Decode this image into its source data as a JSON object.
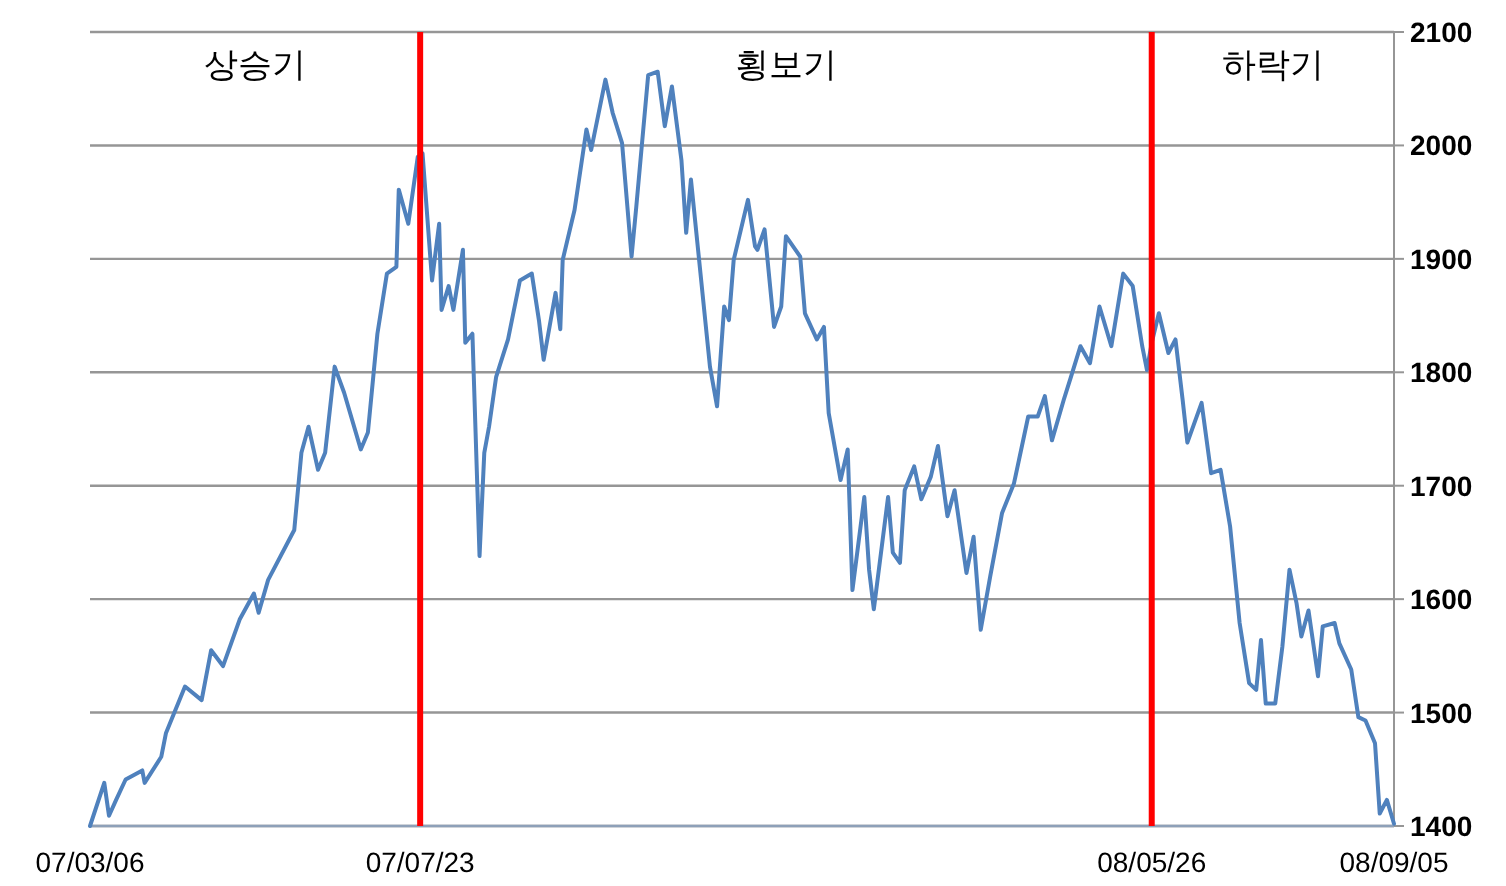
{
  "chart_data": {
    "type": "line",
    "annotations": [
      "상승기",
      "횡보기",
      "하락기"
    ],
    "xlim": [
      "2007-03-06",
      "2008-09-05"
    ],
    "xticks": [
      {
        "value": "2007-03-06",
        "label": "07/03/06"
      },
      {
        "value": "2007-07-23",
        "label": "07/07/23"
      },
      {
        "value": "2008-05-26",
        "label": "08/05/26"
      },
      {
        "value": "2008-09-05",
        "label": "08/09/05"
      }
    ],
    "ylim": [
      1400,
      2100
    ],
    "yticks": [
      1400,
      1500,
      1600,
      1700,
      1800,
      1900,
      2000,
      2100
    ],
    "grid": "y",
    "ref_lines": [
      {
        "axis": "x",
        "value": "2007-07-23",
        "color": "#ff0000"
      },
      {
        "axis": "x",
        "value": "2008-05-26",
        "color": "#ff0000"
      }
    ],
    "series": [
      {
        "color": "#4f81bd",
        "x": [
          "2007-03-06",
          "2007-03-12",
          "2007-03-14",
          "2007-03-17",
          "2007-03-21",
          "2007-03-28",
          "2007-03-29",
          "2007-04-05",
          "2007-04-07",
          "2007-04-15",
          "2007-04-22",
          "2007-04-26",
          "2007-05-01",
          "2007-05-08",
          "2007-05-14",
          "2007-05-16",
          "2007-05-20",
          "2007-05-31",
          "2007-06-03",
          "2007-06-06",
          "2007-06-10",
          "2007-06-13",
          "2007-06-17",
          "2007-06-21",
          "2007-06-28",
          "2007-07-01",
          "2007-07-05",
          "2007-07-09",
          "2007-07-13",
          "2007-07-14",
          "2007-07-18",
          "2007-07-22",
          "2007-07-24",
          "2007-07-28",
          "2007-07-31",
          "2007-08-01",
          "2007-08-04",
          "2007-08-06",
          "2007-08-10",
          "2007-08-11",
          "2007-08-14",
          "2007-08-17",
          "2007-08-19",
          "2007-08-21",
          "2007-08-24",
          "2007-08-29",
          "2007-09-03",
          "2007-09-08",
          "2007-09-11",
          "2007-09-13",
          "2007-09-18",
          "2007-09-20",
          "2007-09-21",
          "2007-09-26",
          "2007-10-01",
          "2007-10-03",
          "2007-10-09",
          "2007-10-12",
          "2007-10-16",
          "2007-10-20",
          "2007-10-22",
          "2007-10-27",
          "2007-10-31",
          "2007-11-03",
          "2007-11-06",
          "2007-11-10",
          "2007-11-12",
          "2007-11-14",
          "2007-11-22",
          "2007-11-25",
          "2007-11-28",
          "2007-11-30",
          "2007-12-02",
          "2007-12-08",
          "2007-12-11",
          "2007-12-12",
          "2007-12-15",
          "2007-12-19",
          "2007-12-22",
          "2007-12-24",
          "2007-12-30",
          "2008-01-01",
          "2008-01-06",
          "2008-01-09",
          "2008-01-11",
          "2008-01-16",
          "2008-01-19",
          "2008-01-21",
          "2008-01-26",
          "2008-01-28",
          "2008-01-30",
          "2008-02-05",
          "2008-02-07",
          "2008-02-10",
          "2008-02-12",
          "2008-02-16",
          "2008-02-19",
          "2008-02-23",
          "2008-02-26",
          "2008-03-01",
          "2008-03-04",
          "2008-03-09",
          "2008-03-12",
          "2008-03-15",
          "2008-03-19",
          "2008-03-24",
          "2008-03-29",
          "2008-04-04",
          "2008-04-08",
          "2008-04-11",
          "2008-04-14",
          "2008-04-19",
          "2008-04-22",
          "2008-04-26",
          "2008-04-30",
          "2008-05-04",
          "2008-05-09",
          "2008-05-14",
          "2008-05-18",
          "2008-05-22",
          "2008-05-24",
          "2008-05-26",
          "2008-05-29",
          "2008-06-02",
          "2008-06-05",
          "2008-06-08",
          "2008-06-10",
          "2008-06-16",
          "2008-06-20",
          "2008-06-24",
          "2008-06-28",
          "2008-07-02",
          "2008-07-06",
          "2008-07-09",
          "2008-07-11",
          "2008-07-13",
          "2008-07-17",
          "2008-07-20",
          "2008-07-23",
          "2008-07-26",
          "2008-07-28",
          "2008-07-31",
          "2008-08-04",
          "2008-08-06",
          "2008-08-11",
          "2008-08-13",
          "2008-08-18",
          "2008-08-21",
          "2008-08-24",
          "2008-08-28",
          "2008-08-30",
          "2008-09-02",
          "2008-09-05"
        ],
        "values": [
          1400,
          1438,
          1409,
          1423,
          1441,
          1449,
          1438,
          1461,
          1482,
          1523,
          1511,
          1555,
          1541,
          1582,
          1605,
          1588,
          1617,
          1661,
          1729,
          1752,
          1714,
          1729,
          1805,
          1782,
          1732,
          1747,
          1834,
          1887,
          1893,
          1961,
          1931,
          1990,
          1993,
          1881,
          1931,
          1855,
          1876,
          1855,
          1908,
          1826,
          1834,
          1638,
          1729,
          1752,
          1796,
          1829,
          1881,
          1887,
          1846,
          1811,
          1870,
          1838,
          1899,
          1943,
          2014,
          1996,
          2058,
          2029,
          2002,
          1902,
          1946,
          2062,
          2065,
          2017,
          2052,
          1987,
          1923,
          1970,
          1805,
          1770,
          1858,
          1846,
          1899,
          1952,
          1911,
          1908,
          1926,
          1840,
          1858,
          1920,
          1902,
          1852,
          1829,
          1840,
          1764,
          1705,
          1732,
          1608,
          1690,
          1626,
          1591,
          1690,
          1641,
          1632,
          1696,
          1717,
          1688,
          1708,
          1735,
          1673,
          1696,
          1623,
          1655,
          1573,
          1620,
          1676,
          1702,
          1761,
          1761,
          1779,
          1740,
          1776,
          1796,
          1823,
          1808,
          1858,
          1823,
          1887,
          1876,
          1823,
          1802,
          1826,
          1852,
          1817,
          1829,
          1776,
          1738,
          1773,
          1711,
          1714,
          1664,
          1579,
          1526,
          1520,
          1564,
          1508,
          1508,
          1558,
          1626,
          1596,
          1567,
          1590,
          1532,
          1576,
          1579,
          1561,
          1538,
          1496,
          1493,
          1473,
          1411,
          1423,
          1402
        ]
      }
    ]
  }
}
